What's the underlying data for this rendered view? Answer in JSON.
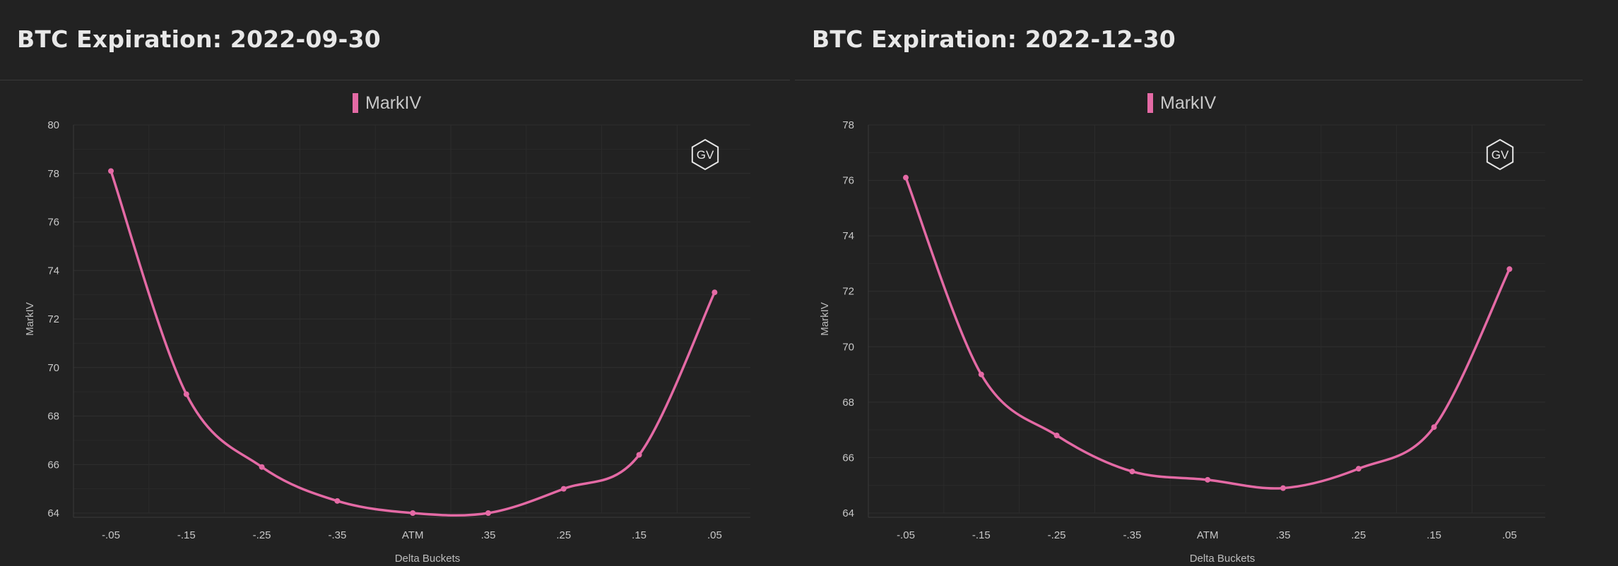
{
  "charts": [
    {
      "title": "BTC Expiration: 2022-09-30",
      "badge": "GV",
      "chart_data": {
        "type": "line",
        "categories": [
          "-.05",
          "-.15",
          "-.25",
          "-.35",
          "ATM",
          ".35",
          ".25",
          ".15",
          ".05"
        ],
        "series": [
          {
            "name": "MarkIV",
            "values": [
              78.1,
              68.9,
              65.9,
              64.5,
              64.0,
              64.0,
              65.0,
              66.4,
              73.1
            ]
          }
        ],
        "xlabel": "Delta Buckets",
        "ylabel": "MarkIV",
        "ylim": [
          64,
          80
        ],
        "yticks": [
          "80",
          "78",
          "76",
          "74",
          "72",
          "70",
          "68",
          "66",
          "64"
        ],
        "legend": "top-center",
        "grid": true,
        "line_color": "#e46aa5"
      }
    },
    {
      "title": "BTC Expiration: 2022-12-30",
      "badge": "GV",
      "chart_data": {
        "type": "line",
        "categories": [
          "-.05",
          "-.15",
          "-.25",
          "-.35",
          "ATM",
          ".35",
          ".25",
          ".15",
          ".05"
        ],
        "series": [
          {
            "name": "MarkIV",
            "values": [
              76.1,
              69.0,
              66.8,
              65.5,
              65.2,
              64.9,
              65.6,
              67.1,
              72.8
            ]
          }
        ],
        "xlabel": "Delta Buckets",
        "ylabel": "MarkIV",
        "ylim": [
          64,
          78
        ],
        "yticks": [
          "78",
          "76",
          "74",
          "72",
          "70",
          "68",
          "66",
          "64"
        ],
        "legend": "top-center",
        "grid": true,
        "line_color": "#e46aa5"
      }
    }
  ]
}
